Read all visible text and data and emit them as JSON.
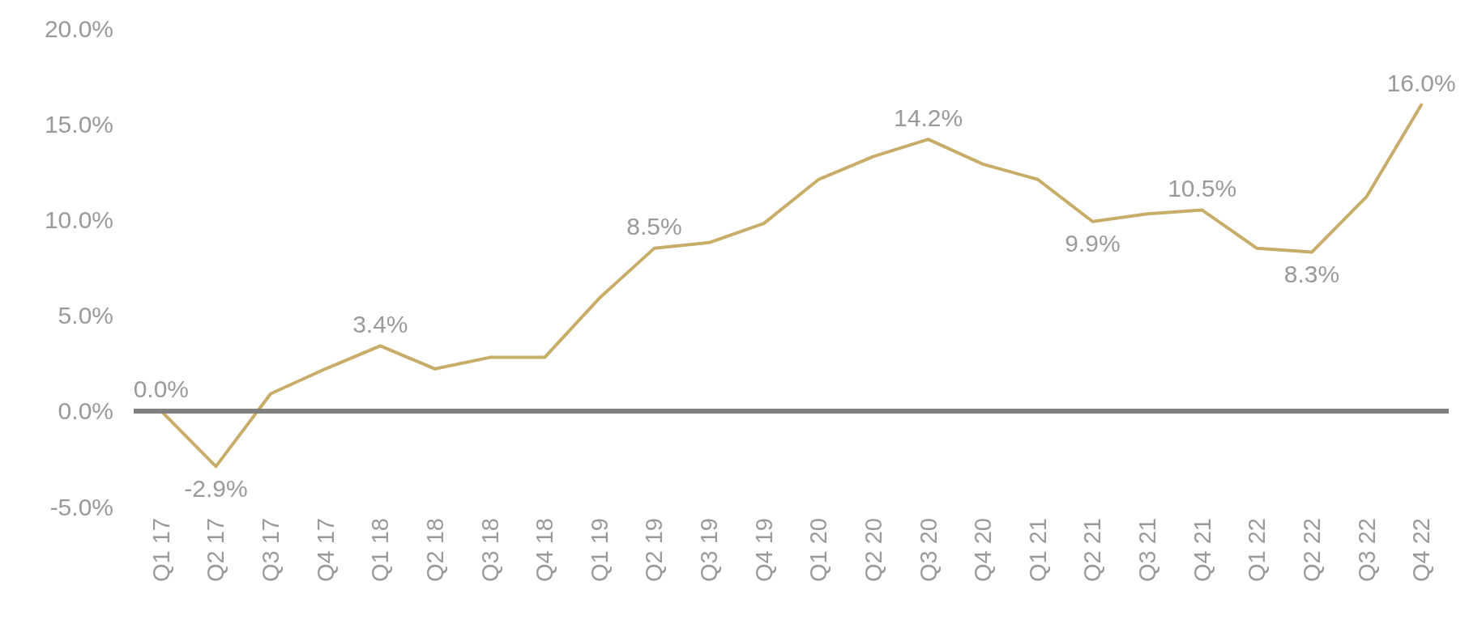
{
  "chart_data": {
    "type": "line",
    "categories": [
      "Q1 17",
      "Q2 17",
      "Q3 17",
      "Q4 17",
      "Q1 18",
      "Q2 18",
      "Q3 18",
      "Q4 18",
      "Q1 19",
      "Q2 19",
      "Q3 19",
      "Q4 19",
      "Q1 20",
      "Q2 20",
      "Q3 20",
      "Q4 20",
      "Q1 21",
      "Q2 21",
      "Q3 21",
      "Q4 21",
      "Q1 22",
      "Q2 22",
      "Q3 22",
      "Q4 22"
    ],
    "series": [
      {
        "color": "#c8ad69",
        "values": [
          0.0,
          -2.9,
          0.9,
          2.2,
          3.4,
          2.2,
          2.8,
          2.8,
          5.9,
          8.5,
          8.8,
          9.8,
          12.1,
          13.3,
          14.2,
          12.9,
          12.1,
          9.9,
          10.3,
          10.5,
          8.5,
          8.3,
          11.2,
          16.0
        ],
        "value_labels": [
          "0.0%",
          "-2.9%",
          null,
          null,
          "3.4%",
          null,
          null,
          null,
          null,
          "8.5%",
          null,
          null,
          null,
          null,
          "14.2%",
          null,
          null,
          "9.9%",
          null,
          "10.5%",
          null,
          "8.3%",
          null,
          "16.0%"
        ]
      }
    ],
    "ylim": [
      -5,
      20
    ],
    "yticks": [
      {
        "value": -5,
        "label": "-5.0%"
      },
      {
        "value": 0,
        "label": "0.0%"
      },
      {
        "value": 5,
        "label": "5.0%"
      },
      {
        "value": 10,
        "label": "10.0%"
      },
      {
        "value": 15,
        "label": "15.0%"
      },
      {
        "value": 20,
        "label": "20.0%"
      }
    ],
    "ref_lines": [
      {
        "axis": "y",
        "value": 0,
        "color": "#808080"
      }
    ],
    "grid": false,
    "marker": "none",
    "line_style": "solid"
  }
}
